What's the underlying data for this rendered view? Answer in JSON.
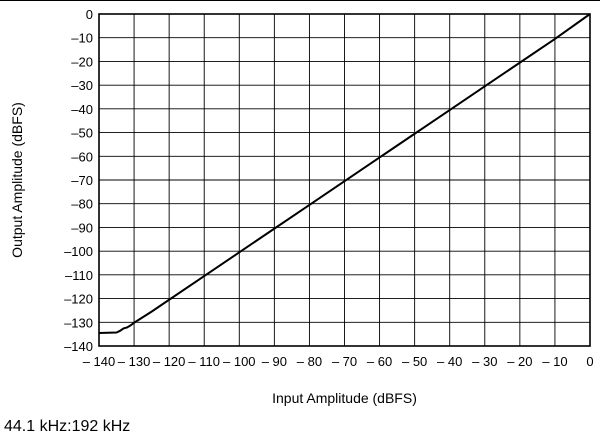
{
  "chart_data": {
    "type": "line",
    "xlabel": "Input Amplitude (dBFS)",
    "ylabel": "Output Amplitude (dBFS)",
    "xlim": [
      -140,
      0
    ],
    "ylim": [
      -140,
      0
    ],
    "xticks": [
      -140,
      -130,
      -120,
      -110,
      -100,
      -90,
      -80,
      -70,
      -60,
      -50,
      -40,
      -30,
      -20,
      -10,
      0
    ],
    "yticks": [
      0,
      -10,
      -20,
      -30,
      -40,
      -50,
      -60,
      -70,
      -80,
      -90,
      -100,
      -110,
      -120,
      -130,
      -140
    ],
    "xtick_labels": [
      "– 140",
      "– 130",
      "– 120",
      "– 110",
      "– 100",
      "– 90",
      "– 80",
      "– 70",
      "– 60",
      "– 50",
      "– 40",
      "– 30",
      "– 20",
      "– 10",
      "0"
    ],
    "ytick_labels": [
      "0",
      "–10",
      "–20",
      "–30",
      "–40",
      "–50",
      "–60",
      "–70",
      "–80",
      "–90",
      "–100",
      "–110",
      "–120",
      "–130",
      "–140"
    ],
    "grid": true,
    "series": [
      {
        "x": [
          -140,
          -135,
          -134,
          -133,
          -132,
          -131,
          -130,
          -125,
          -120,
          -110,
          -100,
          -90,
          -80,
          -70,
          -60,
          -50,
          -40,
          -30,
          -20,
          -10,
          0
        ],
        "y": [
          -134.5,
          -134.3,
          -133.6,
          -132.6,
          -132.2,
          -131.3,
          -130.2,
          -125.5,
          -120.5,
          -110.5,
          -100.5,
          -90.5,
          -80.5,
          -70.5,
          -60.5,
          -50.5,
          -40.5,
          -30.5,
          -20.5,
          -10.5,
          0
        ]
      }
    ]
  },
  "caption": "44.1 kHz:192 kHz"
}
